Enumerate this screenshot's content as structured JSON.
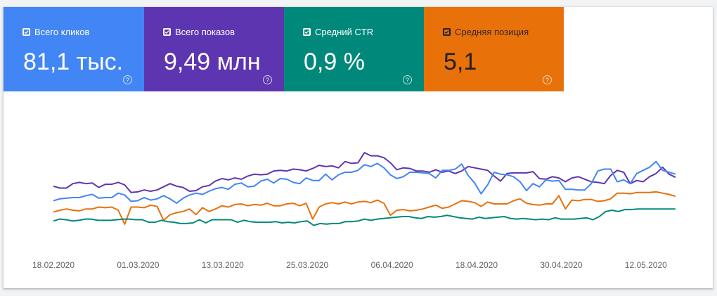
{
  "tiles": [
    {
      "label": "Всего кликов",
      "value": "81,1 тыс.",
      "color": "#4285f4",
      "help": "?"
    },
    {
      "label": "Всего показов",
      "value": "9,49 млн",
      "color": "#5e35b1",
      "help": "?"
    },
    {
      "label": "Средний CTR",
      "value": "0,9 %",
      "color": "#00897b",
      "help": "?"
    },
    {
      "label": "Средняя позиция",
      "value": "5,1",
      "color": "#e8710a",
      "help": "?"
    }
  ],
  "chart_data": {
    "type": "line",
    "x_ticks": [
      "18.02.2020",
      "01.03.2020",
      "13.03.2020",
      "25.03.2020",
      "06.04.2020",
      "18.04.2020",
      "30.04.2020",
      "12.05.2020"
    ],
    "x_range": [
      "2020-02-14",
      "2020-05-18"
    ],
    "series": [
      {
        "color": "#5e35b1",
        "values": [
          48,
          45,
          45,
          52,
          54,
          52,
          53,
          46,
          51,
          51,
          54,
          50,
          38,
          39,
          42,
          40,
          42,
          47,
          52,
          48,
          46,
          40,
          41,
          47,
          49,
          56,
          60,
          58,
          61,
          59,
          64,
          67,
          66,
          67,
          72,
          73,
          72,
          75,
          74,
          72,
          76,
          81,
          79,
          80,
          77,
          87,
          84,
          85,
          101,
          96,
          96,
          93,
          85,
          74,
          77,
          76,
          72,
          72,
          70,
          74,
          70,
          72,
          68,
          72,
          79,
          77,
          75,
          73,
          64,
          56,
          68,
          69,
          69,
          69,
          71,
          60,
          59,
          63,
          61,
          55,
          61,
          63,
          59,
          55,
          54,
          52,
          65,
          73,
          70,
          52,
          57,
          55,
          63,
          68,
          78,
          67,
          62
        ]
      },
      {
        "color": "#4285f4",
        "values": [
          25,
          28,
          29,
          30,
          30,
          33,
          35,
          29,
          30,
          30,
          37,
          34,
          24,
          25,
          30,
          26,
          28,
          33,
          28,
          21,
          29,
          34,
          37,
          35,
          40,
          44,
          46,
          43,
          51,
          53,
          47,
          48,
          56,
          59,
          53,
          60,
          59,
          54,
          52,
          61,
          57,
          57,
          67,
          58,
          66,
          70,
          70,
          73,
          82,
          79,
          84,
          77,
          66,
          60,
          63,
          70,
          70,
          69,
          68,
          61,
          73,
          73,
          75,
          83,
          65,
          53,
          36,
          50,
          70,
          67,
          66,
          63,
          55,
          41,
          52,
          47,
          58,
          56,
          57,
          43,
          43,
          42,
          42,
          52,
          72,
          75,
          75,
          55,
          58,
          52,
          68,
          73,
          78,
          87,
          73,
          70,
          67
        ]
      },
      {
        "color": "#e8710a",
        "values": [
          7,
          10,
          12,
          10,
          9,
          12,
          12,
          15,
          14,
          15,
          10,
          -12,
          15,
          15,
          14,
          18,
          16,
          -6,
          3,
          6,
          8,
          12,
          3,
          14,
          8,
          12,
          17,
          15,
          19,
          20,
          17,
          19,
          18,
          21,
          17,
          17,
          20,
          21,
          17,
          21,
          -4,
          15,
          20,
          22,
          20,
          23,
          20,
          23,
          24,
          22,
          26,
          21,
          2,
          10,
          11,
          9,
          10,
          12,
          15,
          18,
          13,
          15,
          20,
          25,
          24,
          22,
          16,
          23,
          20,
          20,
          20,
          25,
          28,
          21,
          19,
          18,
          20,
          20,
          33,
          12,
          26,
          25,
          27,
          27,
          24,
          25,
          28,
          37,
          37,
          36,
          38,
          38,
          38,
          39,
          37,
          35,
          32
        ]
      },
      {
        "color": "#00897b",
        "values": [
          -7,
          -4,
          -5,
          -7,
          -6,
          -4,
          -4,
          -6,
          -6,
          -6,
          -5,
          -4,
          -4,
          -5,
          -5,
          -9,
          -9,
          -6,
          -8,
          -9,
          -11,
          -11,
          -10,
          -5,
          -10,
          -5,
          -5,
          -5,
          -5,
          -9,
          -6,
          -8,
          -9,
          -9,
          -9,
          -8,
          -10,
          -9,
          -10,
          -8,
          -7,
          -14,
          -11,
          -12,
          -11,
          -11,
          -8,
          -8,
          -7,
          -4,
          -6,
          -4,
          -3,
          -2,
          -1,
          0,
          0,
          -2,
          -3,
          0,
          -1,
          0,
          2,
          0,
          -2,
          -3,
          -4,
          -1,
          -3,
          -2,
          -1,
          0,
          -3,
          -4,
          -3,
          -4,
          -5,
          -4,
          -5,
          -2,
          -4,
          -4,
          -4,
          -3,
          -2,
          -5,
          0,
          8,
          10,
          8,
          11,
          11,
          12,
          12,
          12,
          12,
          12,
          12,
          12
        ]
      }
    ]
  }
}
